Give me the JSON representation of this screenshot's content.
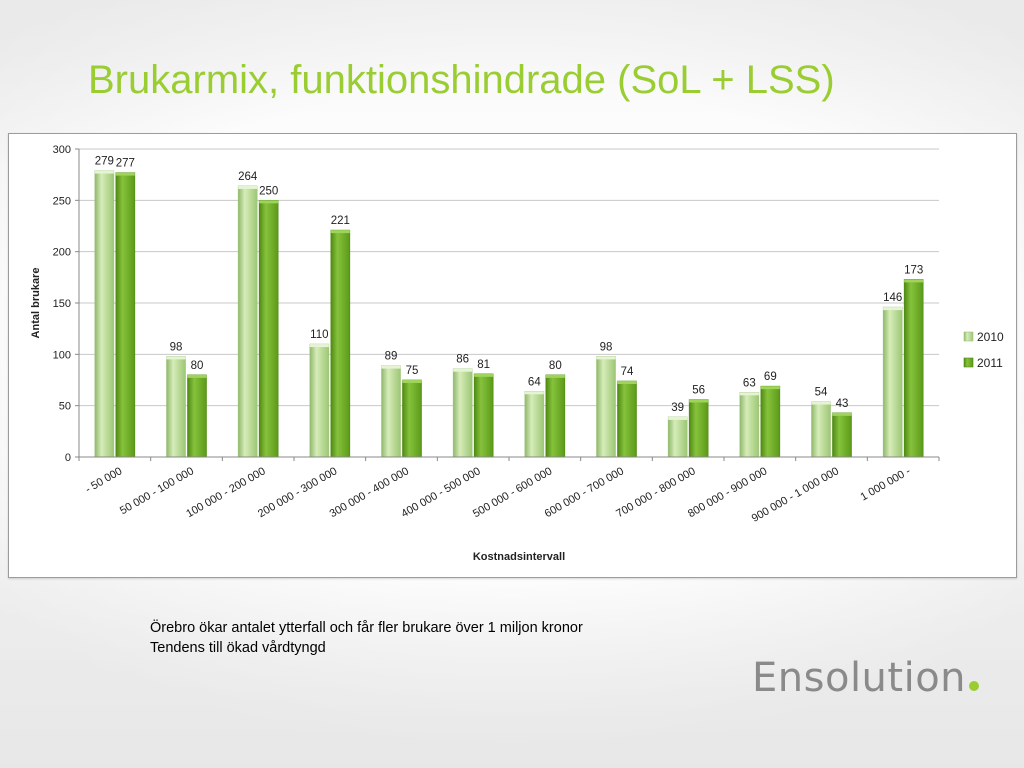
{
  "slide": {
    "title": "Brukarmix, funktionshindrade (SoL + LSS)",
    "caption_lines": [
      "Örebro ökar antalet ytterfall och får fler brukare över 1 miljon kronor",
      "Tendens till ökad vårdtyngd"
    ],
    "logo_text": "Ensolution",
    "logo_dot_color": "#9acd32",
    "title_color": "#9acd32"
  },
  "chart_data": {
    "type": "bar",
    "title": "",
    "xlabel": "Kostnadsintervall",
    "ylabel": "Antal brukare",
    "ylim": [
      0,
      300
    ],
    "yticks": [
      0,
      50,
      100,
      150,
      200,
      250,
      300
    ],
    "grid": true,
    "legend_position": "right",
    "categories": [
      "- 50 000",
      "50 000 - 100 000",
      "100 000 - 200 000",
      "200 000 - 300 000",
      "300 000 - 400 000",
      "400 000 - 500 000",
      "500 000 - 600 000",
      "600 000 - 700 000",
      "700 000 - 800 000",
      "800 000 - 900 000",
      "900 000 - 1 000 000",
      "1 000 000 -"
    ],
    "series": [
      {
        "name": "2010",
        "color": "#b5d98a",
        "values": [
          279,
          98,
          264,
          110,
          89,
          86,
          64,
          98,
          39,
          63,
          54,
          146
        ]
      },
      {
        "name": "2011",
        "color": "#6aa121",
        "values": [
          277,
          80,
          250,
          221,
          75,
          81,
          80,
          74,
          56,
          69,
          43,
          173
        ]
      }
    ]
  }
}
